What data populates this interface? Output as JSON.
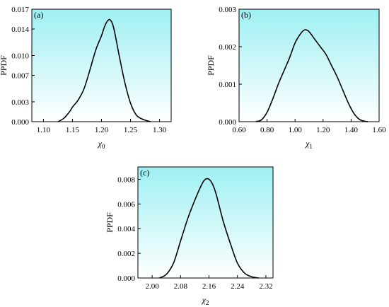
{
  "colors": {
    "gradient_top": "#9ef0f3",
    "gradient_bottom": "#ffffff",
    "line": "#000000",
    "frame": "#000000"
  },
  "chart_data": [
    {
      "type": "line",
      "panel_label": "(a)",
      "ylabel": "PPDF",
      "xlabel_symbol": "χ",
      "xlabel_sub": "0",
      "xlim": [
        1.08,
        1.32
      ],
      "ylim": [
        0,
        0.017
      ],
      "xticks": [
        1.1,
        1.15,
        1.2,
        1.25,
        1.3
      ],
      "xtick_labels": [
        "1.10",
        "1.15",
        "1.20",
        "1.25",
        "1.30"
      ],
      "yticks": [
        0,
        0.003,
        0.007,
        0.01,
        0.014,
        0.017
      ],
      "ytick_labels": [
        "0.000",
        "0.003",
        "0.007",
        "0.010",
        "0.014",
        "0.017"
      ],
      "x": [
        1.125,
        1.135,
        1.145,
        1.15,
        1.16,
        1.17,
        1.18,
        1.19,
        1.2,
        1.205,
        1.21,
        1.215,
        1.22,
        1.225,
        1.23,
        1.24,
        1.25,
        1.26,
        1.27,
        1.28,
        1.285
      ],
      "y": [
        0.0,
        0.0005,
        0.0015,
        0.0022,
        0.0033,
        0.005,
        0.0078,
        0.0108,
        0.013,
        0.0143,
        0.0152,
        0.0154,
        0.0145,
        0.0125,
        0.0102,
        0.006,
        0.0028,
        0.001,
        0.0004,
        0.0001,
        0.0
      ]
    },
    {
      "type": "line",
      "panel_label": "(b)",
      "ylabel": "PPDF",
      "xlabel_symbol": "χ",
      "xlabel_sub": "1",
      "xlim": [
        0.6,
        1.6
      ],
      "ylim": [
        0,
        0.003
      ],
      "xticks": [
        0.6,
        0.8,
        1.0,
        1.2,
        1.4,
        1.6
      ],
      "xtick_labels": [
        "0.60",
        "0.80",
        "1.00",
        "1.20",
        "1.40",
        "1.60"
      ],
      "yticks": [
        0,
        0.001,
        0.002,
        0.003
      ],
      "ytick_labels": [
        "0.000",
        "0.001",
        "0.002",
        "0.003"
      ],
      "x": [
        0.72,
        0.76,
        0.8,
        0.84,
        0.88,
        0.92,
        0.96,
        1.0,
        1.04,
        1.07,
        1.1,
        1.14,
        1.18,
        1.22,
        1.26,
        1.3,
        1.34,
        1.38,
        1.42,
        1.46,
        1.5,
        1.52
      ],
      "y": [
        0.0,
        5e-05,
        0.00025,
        0.0006,
        0.001,
        0.00135,
        0.0017,
        0.0021,
        0.00235,
        0.00245,
        0.0024,
        0.0022,
        0.002,
        0.0018,
        0.0015,
        0.0012,
        0.00085,
        0.0005,
        0.00022,
        6e-05,
        1e-05,
        0.0
      ]
    },
    {
      "type": "line",
      "panel_label": "(c)",
      "ylabel": "PPDF",
      "xlabel_symbol": "χ",
      "xlabel_sub": "2",
      "xlim": [
        1.96,
        2.34
      ],
      "ylim": [
        0,
        0.009
      ],
      "xticks": [
        2.0,
        2.08,
        2.16,
        2.24,
        2.32
      ],
      "xtick_labels": [
        "2.00",
        "2.08",
        "2.16",
        "2.24",
        "2.32"
      ],
      "yticks": [
        0,
        0.002,
        0.004,
        0.006,
        0.008
      ],
      "ytick_labels": [
        "0.000",
        "0.002",
        "0.004",
        "0.006",
        "0.008"
      ],
      "x": [
        2.02,
        2.04,
        2.06,
        2.08,
        2.1,
        2.12,
        2.14,
        2.15,
        2.16,
        2.17,
        2.18,
        2.2,
        2.22,
        2.24,
        2.26,
        2.28,
        2.3
      ],
      "y": [
        0.0,
        0.0003,
        0.0012,
        0.003,
        0.0048,
        0.0063,
        0.0076,
        0.008,
        0.008,
        0.0076,
        0.0068,
        0.0046,
        0.0028,
        0.0012,
        0.0004,
        0.0001,
        0.0
      ]
    }
  ]
}
